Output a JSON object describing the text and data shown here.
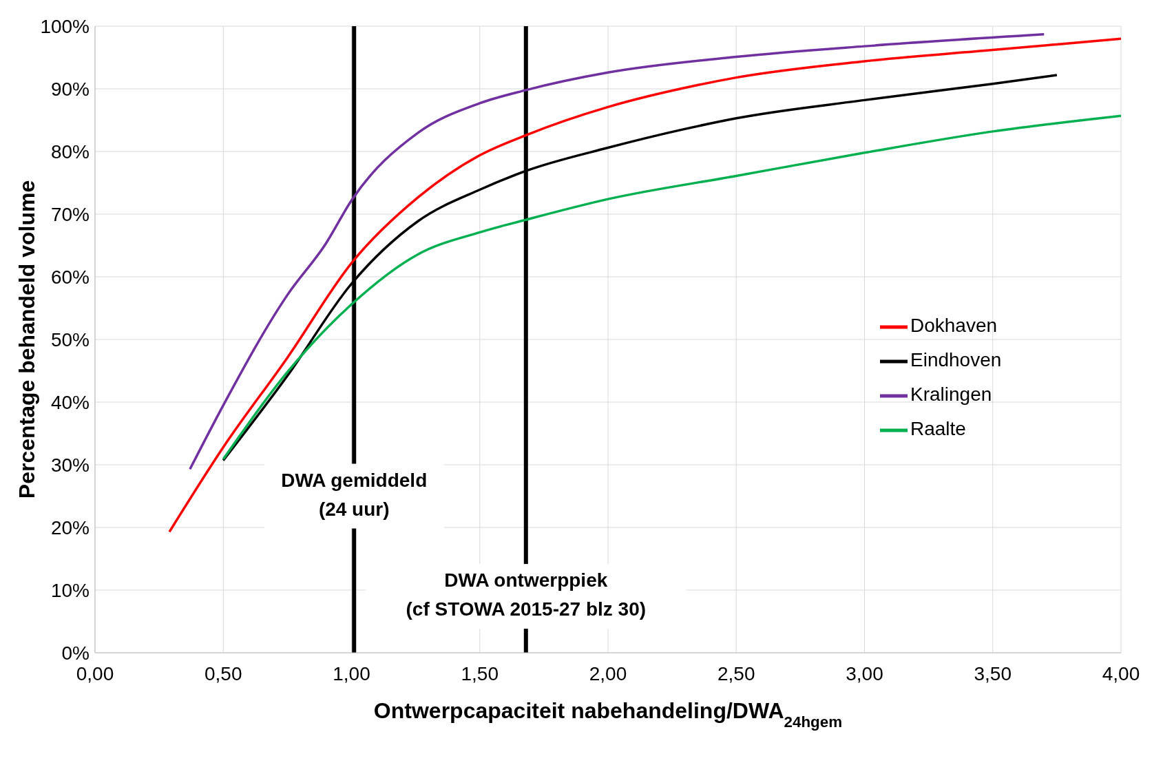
{
  "chart_data": {
    "type": "line",
    "xlabel": "Ontwerpcapaciteit nabehandeling/DWA$_{24hgem}$",
    "ylabel": "Percentage behandeld volume",
    "series": [
      {
        "name": "Dokhaven",
        "color": "#ff0000",
        "x": [
          0.29,
          0.5,
          0.75,
          1.0,
          1.26,
          1.5,
          1.68,
          2.0,
          2.35,
          2.5,
          3.0,
          3.5,
          4.0
        ],
        "values": [
          19.3,
          32.8,
          47.1,
          62.2,
          72.7,
          79.4,
          82.6,
          87.1,
          90.6,
          91.8,
          94.4,
          96.2,
          98.0
        ]
      },
      {
        "name": "Eindhoven",
        "color": "#000000",
        "x": [
          0.5,
          0.75,
          1.0,
          1.26,
          1.5,
          1.68,
          2.0,
          2.29,
          2.5,
          3.0,
          3.5,
          3.75
        ],
        "values": [
          30.7,
          44.2,
          58.9,
          68.9,
          73.9,
          76.9,
          80.6,
          83.5,
          85.3,
          88.2,
          90.8,
          92.2
        ]
      },
      {
        "name": "Kralingen",
        "color": "#7030a0",
        "x": [
          0.37,
          0.5,
          0.75,
          0.9,
          1.0,
          1.26,
          1.5,
          1.68,
          2.0,
          2.5,
          3.0,
          3.7
        ],
        "values": [
          29.3,
          39.5,
          57.1,
          65.3,
          72.2,
          83.0,
          87.7,
          89.8,
          92.6,
          95.1,
          96.8,
          98.7
        ]
      },
      {
        "name": "Raalte",
        "color": "#00b050",
        "x": [
          0.5,
          0.75,
          1.0,
          1.26,
          1.5,
          1.68,
          2.0,
          2.5,
          3.0,
          3.5,
          4.0
        ],
        "values": [
          30.9,
          44.8,
          55.6,
          63.6,
          67.1,
          69.1,
          72.4,
          76.1,
          79.8,
          83.2,
          85.7
        ]
      }
    ],
    "xlim": [
      0,
      4
    ],
    "xticks": [
      {
        "value": 0,
        "label": "0,00"
      },
      {
        "value": 0.5,
        "label": "0,50"
      },
      {
        "value": 1,
        "label": "1,00"
      },
      {
        "value": 1.5,
        "label": "1,50"
      },
      {
        "value": 2,
        "label": "2,00"
      },
      {
        "value": 2.5,
        "label": "2,50"
      },
      {
        "value": 3,
        "label": "3,00"
      },
      {
        "value": 3.5,
        "label": "3,50"
      },
      {
        "value": 4,
        "label": "4,00"
      }
    ],
    "ylim": [
      0,
      100
    ],
    "yticks": [
      {
        "value": 0,
        "label": "0%"
      },
      {
        "value": 10,
        "label": "10%"
      },
      {
        "value": 20,
        "label": "20%"
      },
      {
        "value": 30,
        "label": "30%"
      },
      {
        "value": 40,
        "label": "40%"
      },
      {
        "value": 50,
        "label": "50%"
      },
      {
        "value": 60,
        "label": "60%"
      },
      {
        "value": 70,
        "label": "70%"
      },
      {
        "value": 80,
        "label": "80%"
      },
      {
        "value": 90,
        "label": "90%"
      },
      {
        "value": 100,
        "label": "100%"
      }
    ],
    "ref_lines": [
      {
        "axis": "x",
        "value": 1.01,
        "label": "DWA gemiddeld\n(24 uur)",
        "color": "#000000"
      },
      {
        "axis": "x",
        "value": 1.68,
        "label": "DWA ontwerppiek\n(cf STOWA 2015-27 blz 30)",
        "color": "#000000"
      }
    ],
    "grid": true,
    "legend": "right",
    "marker": "none",
    "line_style": "solid"
  }
}
